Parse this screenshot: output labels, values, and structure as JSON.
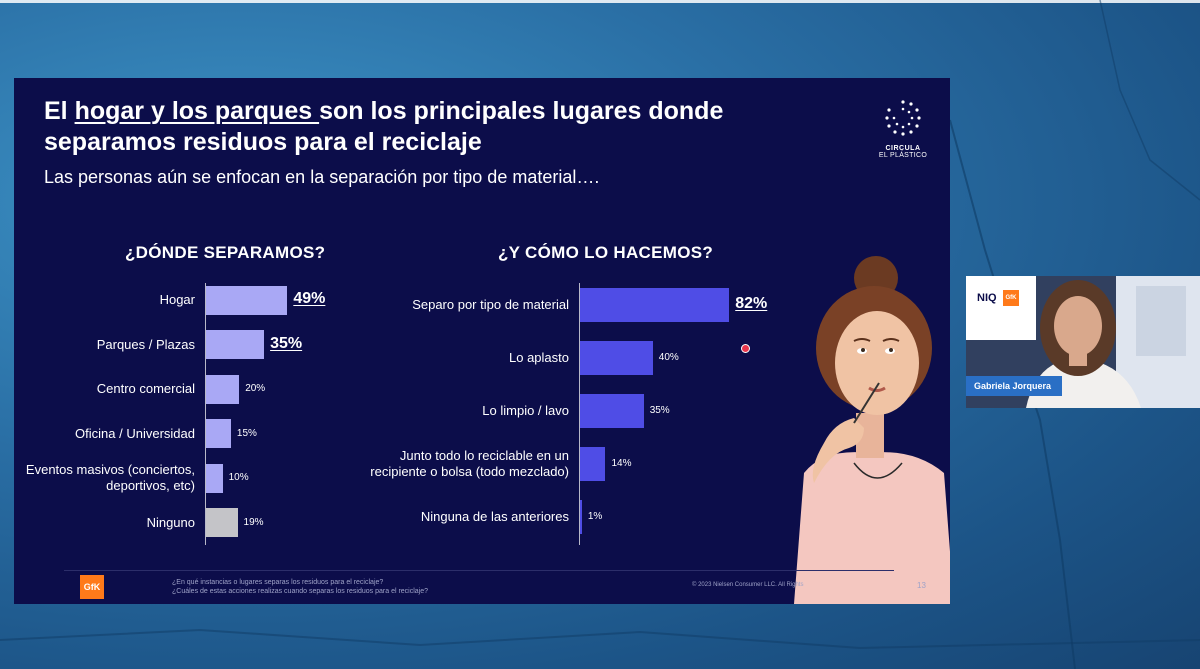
{
  "slide": {
    "title_part1": "El ",
    "title_underlined": "hogar y los parques ",
    "title_part2": "son los principales lugares donde separamos residuos para el reciclaje",
    "subtitle": "Las personas aún se enfocan en la separación por tipo de material….",
    "logo_line1": "CIRCULA",
    "logo_line2": "EL PLÁSTICO",
    "footnote_line1": "¿En qué instancias o lugares separas los residuos para el reciclaje?",
    "footnote_line2": "¿Cuáles de estas acciones realizas cuando separas los residuos para el reciclaje?",
    "copyright": "© 2023 Nielsen Consumer LLC. All Rights",
    "page_number": "13",
    "gfk_logo": "GfK"
  },
  "chart_data": [
    {
      "type": "bar",
      "orientation": "horizontal",
      "title": "¿DÓNDE SEPARAMOS?",
      "categories": [
        "Hogar",
        "Parques / Plazas",
        "Centro comercial",
        "Oficina / Universidad",
        "Eventos masivos (conciertos, deportivos, etc)",
        "Ninguno"
      ],
      "values": [
        49,
        35,
        20,
        15,
        10,
        19
      ],
      "labels": [
        "49%",
        "35%",
        "20%",
        "15%",
        "10%",
        "19%"
      ],
      "highlighted": [
        true,
        true,
        false,
        false,
        false,
        false
      ],
      "colors": [
        "#a9a8f5",
        "#a9a8f5",
        "#a9a8f5",
        "#a9a8f5",
        "#a9a8f5",
        "#c4c4c8"
      ]
    },
    {
      "type": "bar",
      "orientation": "horizontal",
      "title": "¿Y CÓMO LO HACEMOS?",
      "categories": [
        "Separo por tipo de material",
        "Lo aplasto",
        "Lo limpio / lavo",
        "Junto todo lo reciclable en un recipiente o bolsa (todo mezclado)",
        "Ninguna de las anteriores"
      ],
      "values": [
        82,
        40,
        35,
        14,
        1
      ],
      "labels": [
        "82%",
        "40%",
        "35%",
        "14%",
        "1%"
      ],
      "highlighted": [
        true,
        false,
        false,
        false,
        false
      ],
      "colors": [
        "#4f4de6",
        "#4f4de6",
        "#4f4de6",
        "#4f4de6",
        "#4f4de6"
      ]
    }
  ],
  "webcam": {
    "presenter_name": "Gabriela Jorquera",
    "brand_niq": "NIQ",
    "brand_gfk": "GfK"
  }
}
